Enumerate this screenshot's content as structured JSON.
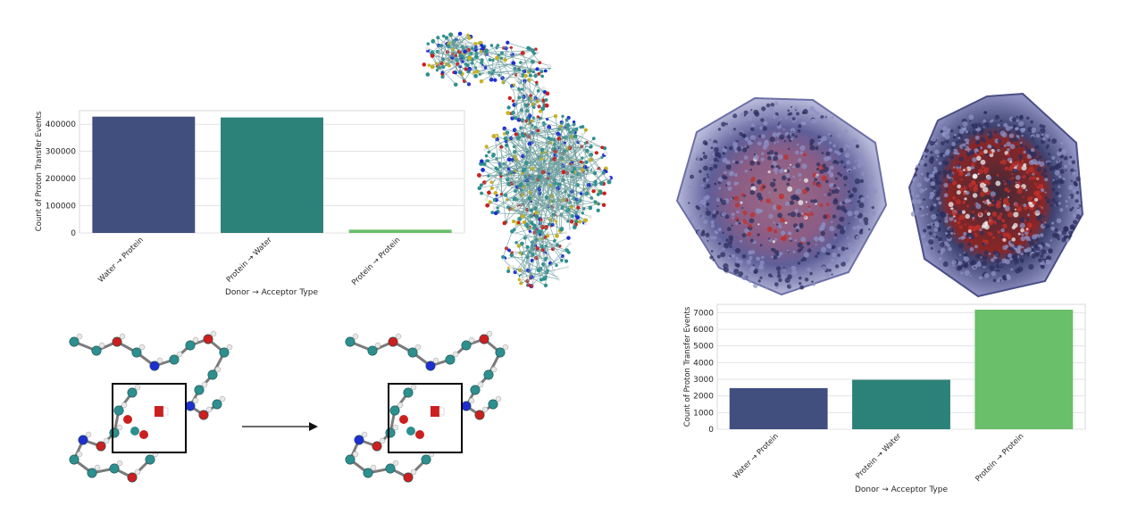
{
  "colors": {
    "water_protein": "#414f7f",
    "protein_water": "#2c8279",
    "protein_protein": "#6abf6a",
    "carbon": "#2e8f8f",
    "oxygen": "#cc1f1f",
    "nitrogen": "#1f2ed1",
    "hydrogen": "#e8e8e8",
    "surface": "#4a4f8c"
  },
  "icons": {
    "transfer_arrow": "right-arrow-icon"
  },
  "chart_data": [
    {
      "type": "bar",
      "categories": [
        "Water → Protein",
        "Protein → Water",
        "Protein → Protein"
      ],
      "values": [
        428000,
        425000,
        12000
      ],
      "xlabel": "Donor → Acceptor Type",
      "ylabel": "Count of Proton Transfer Events",
      "ylim": [
        0,
        450000
      ],
      "yticks": [
        0,
        100000,
        200000,
        300000,
        400000
      ],
      "grid": true
    },
    {
      "type": "bar",
      "categories": [
        "Water → Protein",
        "Protein → Water",
        "Protein → Protein"
      ],
      "values": [
        2470,
        2970,
        7180
      ],
      "xlabel": "Donor → Acceptor Type",
      "ylabel": "Count of Proton Transfer Events",
      "ylim": [
        0,
        7500
      ],
      "yticks": [
        0,
        1000,
        2000,
        3000,
        4000,
        5000,
        6000,
        7000
      ],
      "grid": true
    }
  ]
}
